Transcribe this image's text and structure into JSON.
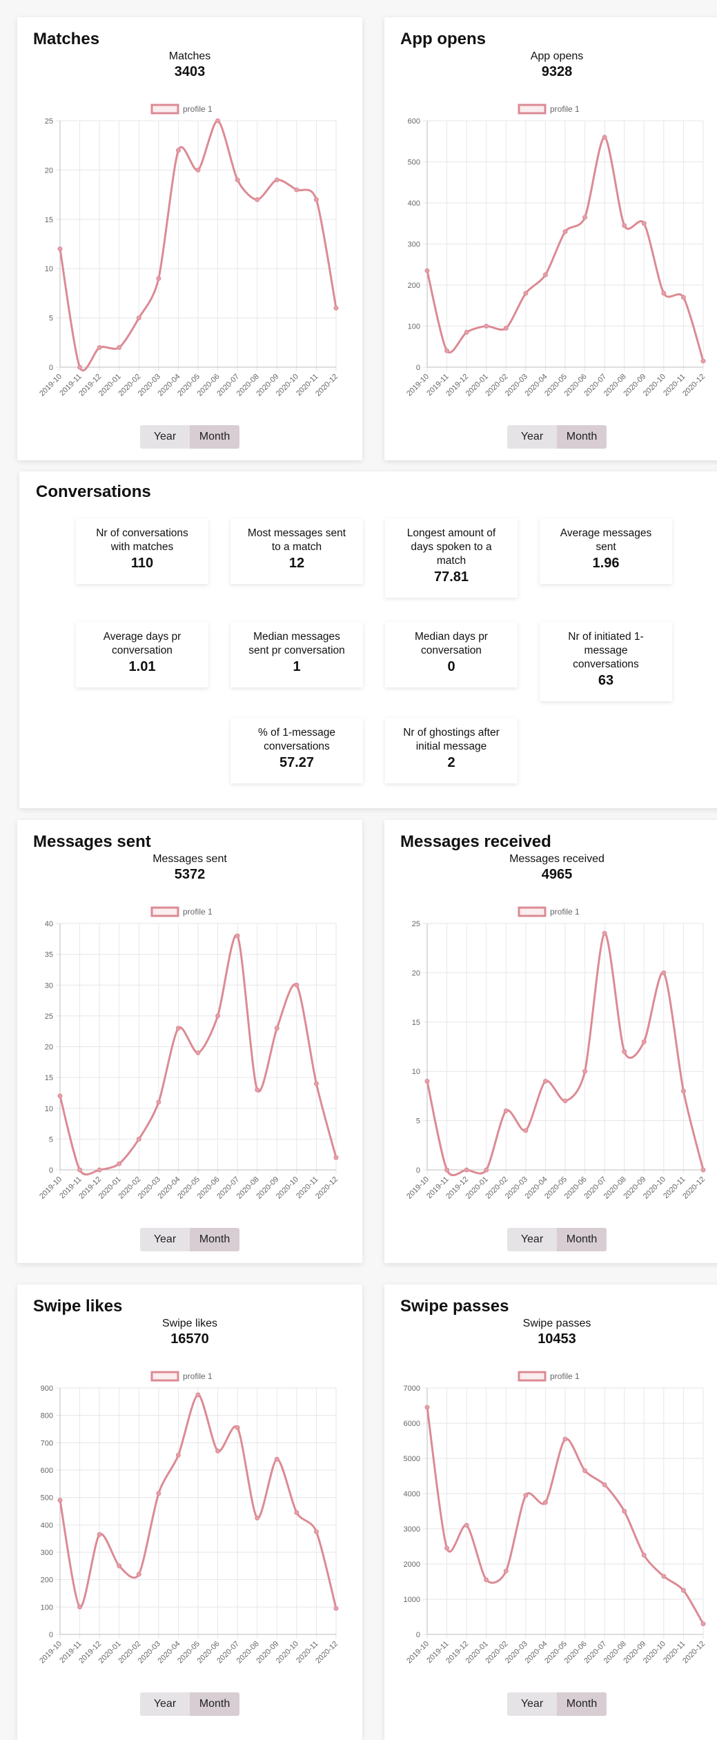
{
  "colors": {
    "line": "#dc8a94",
    "point": "#e3a0a8",
    "grid": "#e6e6e6",
    "axis": "#bdbdbd"
  },
  "controls": {
    "year_label": "Year",
    "month_label": "Month"
  },
  "charts": [
    {
      "key": "matches",
      "card_title": "Matches",
      "stat_label": "Matches",
      "stat_value": "3403",
      "legend": "profile 1"
    },
    {
      "key": "app_opens",
      "card_title": "App opens",
      "stat_label": "App opens",
      "stat_value": "9328",
      "legend": "profile 1"
    },
    {
      "key": "messages_sent",
      "card_title": "Messages sent",
      "stat_label": "Messages sent",
      "stat_value": "5372",
      "legend": "profile 1"
    },
    {
      "key": "messages_received",
      "card_title": "Messages received",
      "stat_label": "Messages received",
      "stat_value": "4965",
      "legend": "profile 1"
    },
    {
      "key": "swipe_likes",
      "card_title": "Swipe likes",
      "stat_label": "Swipe likes",
      "stat_value": "16570",
      "legend": "profile 1"
    },
    {
      "key": "swipe_passes",
      "card_title": "Swipe passes",
      "stat_label": "Swipe passes",
      "stat_value": "10453",
      "legend": "profile 1"
    }
  ],
  "conversations": {
    "title": "Conversations",
    "stats": [
      {
        "label": "Nr of conversations with matches",
        "value": "110"
      },
      {
        "label": "Most messages sent to a match",
        "value": "12"
      },
      {
        "label": "Longest amount of days spoken to a match",
        "value": "77.81"
      },
      {
        "label": "Average messages sent",
        "value": "1.96"
      },
      {
        "label": "Average days pr conversation",
        "value": "1.01"
      },
      {
        "label": "Median messages sent pr conversation",
        "value": "1"
      },
      {
        "label": "Median days pr conversation",
        "value": "0"
      },
      {
        "label": "Nr of initiated 1-message conversations",
        "value": "63"
      },
      {
        "label": "% of 1-message conversations",
        "value": "57.27"
      },
      {
        "label": "Nr of ghostings after initial message",
        "value": "2"
      }
    ]
  },
  "chart_data": [
    {
      "type": "line",
      "title": "Matches",
      "xlabel": "",
      "ylabel": "",
      "categories": [
        "2019-10",
        "2019-11",
        "2019-12",
        "2020-01",
        "2020-02",
        "2020-03",
        "2020-04",
        "2020-05",
        "2020-06",
        "2020-07",
        "2020-08",
        "2020-09",
        "2020-10",
        "2020-11",
        "2020-12"
      ],
      "series": [
        {
          "name": "profile 1",
          "values": [
            12,
            0,
            2,
            2,
            5,
            9,
            22,
            20,
            25,
            19,
            17,
            19,
            18,
            17,
            6
          ]
        }
      ],
      "ylim": [
        0,
        25
      ],
      "yticks": [
        0,
        5,
        10,
        15,
        20,
        25
      ],
      "grid": true,
      "legend": "top-center"
    },
    {
      "type": "line",
      "title": "App opens",
      "xlabel": "",
      "ylabel": "",
      "categories": [
        "2019-10",
        "2019-11",
        "2019-12",
        "2020-01",
        "2020-02",
        "2020-03",
        "2020-04",
        "2020-05",
        "2020-06",
        "2020-07",
        "2020-08",
        "2020-09",
        "2020-10",
        "2020-11",
        "2020-12"
      ],
      "series": [
        {
          "name": "profile 1",
          "values": [
            235,
            40,
            85,
            100,
            95,
            180,
            225,
            330,
            365,
            560,
            345,
            350,
            180,
            170,
            15
          ]
        }
      ],
      "ylim": [
        0,
        600
      ],
      "yticks": [
        0,
        100,
        200,
        300,
        400,
        500,
        600
      ],
      "grid": true,
      "legend": "top-center"
    },
    {
      "type": "line",
      "title": "Messages sent",
      "xlabel": "",
      "ylabel": "",
      "categories": [
        "2019-10",
        "2019-11",
        "2019-12",
        "2020-01",
        "2020-02",
        "2020-03",
        "2020-04",
        "2020-05",
        "2020-06",
        "2020-07",
        "2020-08",
        "2020-09",
        "2020-10",
        "2020-11",
        "2020-12"
      ],
      "series": [
        {
          "name": "profile 1",
          "values": [
            12,
            0,
            0,
            1,
            5,
            11,
            23,
            19,
            25,
            38,
            13,
            23,
            30,
            14,
            2
          ]
        }
      ],
      "ylim": [
        0,
        40
      ],
      "yticks": [
        0,
        5,
        10,
        15,
        20,
        25,
        30,
        35,
        40
      ],
      "grid": true,
      "legend": "top-center"
    },
    {
      "type": "line",
      "title": "Messages received",
      "xlabel": "",
      "ylabel": "",
      "categories": [
        "2019-10",
        "2019-11",
        "2019-12",
        "2020-01",
        "2020-02",
        "2020-03",
        "2020-04",
        "2020-05",
        "2020-06",
        "2020-07",
        "2020-08",
        "2020-09",
        "2020-10",
        "2020-11",
        "2020-12"
      ],
      "series": [
        {
          "name": "profile 1",
          "values": [
            9,
            0,
            0,
            0,
            6,
            4,
            9,
            7,
            10,
            24,
            12,
            13,
            20,
            8,
            0
          ]
        }
      ],
      "ylim": [
        0,
        25
      ],
      "yticks": [
        0,
        5,
        10,
        15,
        20,
        25
      ],
      "grid": true,
      "legend": "top-center"
    },
    {
      "type": "line",
      "title": "Swipe likes",
      "xlabel": "",
      "ylabel": "",
      "categories": [
        "2019-10",
        "2019-11",
        "2019-12",
        "2020-01",
        "2020-02",
        "2020-03",
        "2020-04",
        "2020-05",
        "2020-06",
        "2020-07",
        "2020-08",
        "2020-09",
        "2020-10",
        "2020-11",
        "2020-12"
      ],
      "series": [
        {
          "name": "profile 1",
          "values": [
            490,
            100,
            365,
            250,
            220,
            515,
            655,
            875,
            670,
            755,
            425,
            640,
            445,
            375,
            95
          ]
        }
      ],
      "ylim": [
        0,
        900
      ],
      "yticks": [
        0,
        100,
        200,
        300,
        400,
        500,
        600,
        700,
        800,
        900
      ],
      "grid": true,
      "legend": "top-center"
    },
    {
      "type": "line",
      "title": "Swipe passes",
      "xlabel": "",
      "ylabel": "",
      "categories": [
        "2019-10",
        "2019-11",
        "2019-12",
        "2020-01",
        "2020-02",
        "2020-03",
        "2020-04",
        "2020-05",
        "2020-06",
        "2020-07",
        "2020-08",
        "2020-09",
        "2020-10",
        "2020-11",
        "2020-12"
      ],
      "series": [
        {
          "name": "profile 1",
          "values": [
            6450,
            2450,
            3100,
            1550,
            1800,
            3950,
            3750,
            5550,
            4650,
            4250,
            3500,
            2250,
            1650,
            1250,
            300
          ]
        }
      ],
      "ylim": [
        0,
        7000
      ],
      "yticks": [
        0,
        1000,
        2000,
        3000,
        4000,
        5000,
        6000,
        7000
      ],
      "grid": true,
      "legend": "top-center"
    }
  ]
}
